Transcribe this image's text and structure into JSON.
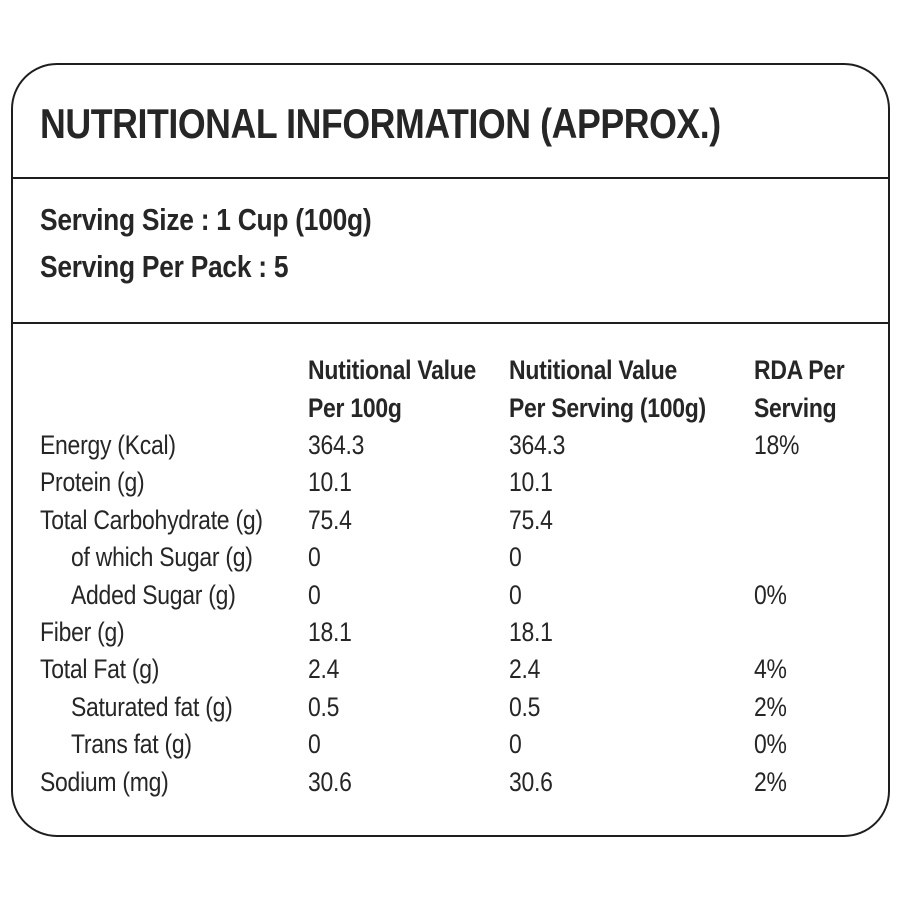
{
  "panel": {
    "title": "NUTRITIONAL INFORMATION (APPROX.)",
    "serving": {
      "size": "Serving Size : 1 Cup (100g)",
      "per_pack": "Serving Per Pack : 5"
    },
    "table": {
      "headers": [
        {
          "line1": "Nutitional Value",
          "line2": "Per 100g"
        },
        {
          "line1": "Nutitional Value",
          "line2": "Per Serving (100g)"
        },
        {
          "line1": "RDA Per",
          "line2": "Serving"
        }
      ],
      "rows": [
        {
          "name": "Energy (Kcal)",
          "per_100g": "364.3",
          "per_serving": "364.3",
          "rda": "18%"
        },
        {
          "name": "Protein (g)",
          "per_100g": "10.1",
          "per_serving": "10.1",
          "rda": ""
        },
        {
          "name": "Total Carbohydrate (g)",
          "per_100g": "75.4",
          "per_serving": "75.4",
          "rda": ""
        },
        {
          "name": "of which Sugar (g)",
          "per_100g": "0",
          "per_serving": "0",
          "rda": ""
        },
        {
          "name": "Added Sugar (g)",
          "per_100g": "0",
          "per_serving": "0",
          "rda": "0%"
        },
        {
          "name": "Fiber (g)",
          "per_100g": "18.1",
          "per_serving": "18.1",
          "rda": ""
        },
        {
          "name": "Total Fat (g)",
          "per_100g": "2.4",
          "per_serving": "2.4",
          "rda": "4%"
        },
        {
          "name": "Saturated fat (g)",
          "per_100g": "0.5",
          "per_serving": "0.5",
          "rda": "2%"
        },
        {
          "name": "Trans fat (g)",
          "per_100g": "0",
          "per_serving": "0",
          "rda": "0%"
        },
        {
          "name": "Sodium (mg)",
          "per_100g": "30.6",
          "per_serving": "30.6",
          "rda": "2%"
        }
      ]
    },
    "colors": {
      "text": "#262626",
      "border": "#1e1e1e",
      "background": "#ffffff"
    }
  }
}
